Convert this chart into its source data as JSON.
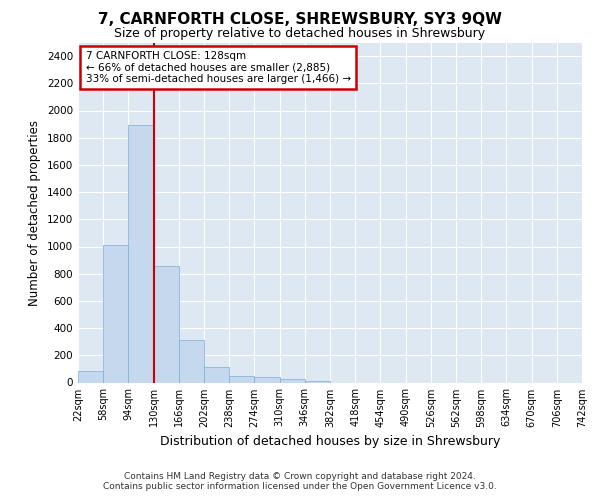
{
  "title": "7, CARNFORTH CLOSE, SHREWSBURY, SY3 9QW",
  "subtitle": "Size of property relative to detached houses in Shrewsbury",
  "xlabel": "Distribution of detached houses by size in Shrewsbury",
  "ylabel": "Number of detached properties",
  "bar_color": "#c5d8ee",
  "bar_edge_color": "#7aadd4",
  "bg_color": "#dde8f3",
  "grid_color": "#ffffff",
  "marker_value": 130,
  "marker_color": "#cc0000",
  "annotation_title": "7 CARNFORTH CLOSE: 128sqm",
  "annotation_line1": "← 66% of detached houses are smaller (2,885)",
  "annotation_line2": "33% of semi-detached houses are larger (1,466) →",
  "annotation_box_color": "white",
  "annotation_box_edge": "#cc0000",
  "bin_edges": [
    22,
    58,
    94,
    130,
    166,
    202,
    238,
    274,
    310,
    346,
    382,
    418,
    454,
    490,
    526,
    562,
    598,
    634,
    670,
    706,
    742
  ],
  "bin_labels": [
    "22sqm",
    "58sqm",
    "94sqm",
    "130sqm",
    "166sqm",
    "202sqm",
    "238sqm",
    "274sqm",
    "310sqm",
    "346sqm",
    "382sqm",
    "418sqm",
    "454sqm",
    "490sqm",
    "526sqm",
    "562sqm",
    "598sqm",
    "634sqm",
    "670sqm",
    "706sqm",
    "742sqm"
  ],
  "bar_heights": [
    85,
    1010,
    1890,
    860,
    315,
    115,
    45,
    38,
    28,
    12,
    0,
    0,
    0,
    0,
    0,
    0,
    0,
    0,
    0,
    0
  ],
  "ylim": [
    0,
    2500
  ],
  "yticks": [
    0,
    200,
    400,
    600,
    800,
    1000,
    1200,
    1400,
    1600,
    1800,
    2000,
    2200,
    2400
  ],
  "footer_line1": "Contains HM Land Registry data © Crown copyright and database right 2024.",
  "footer_line2": "Contains public sector information licensed under the Open Government Licence v3.0."
}
